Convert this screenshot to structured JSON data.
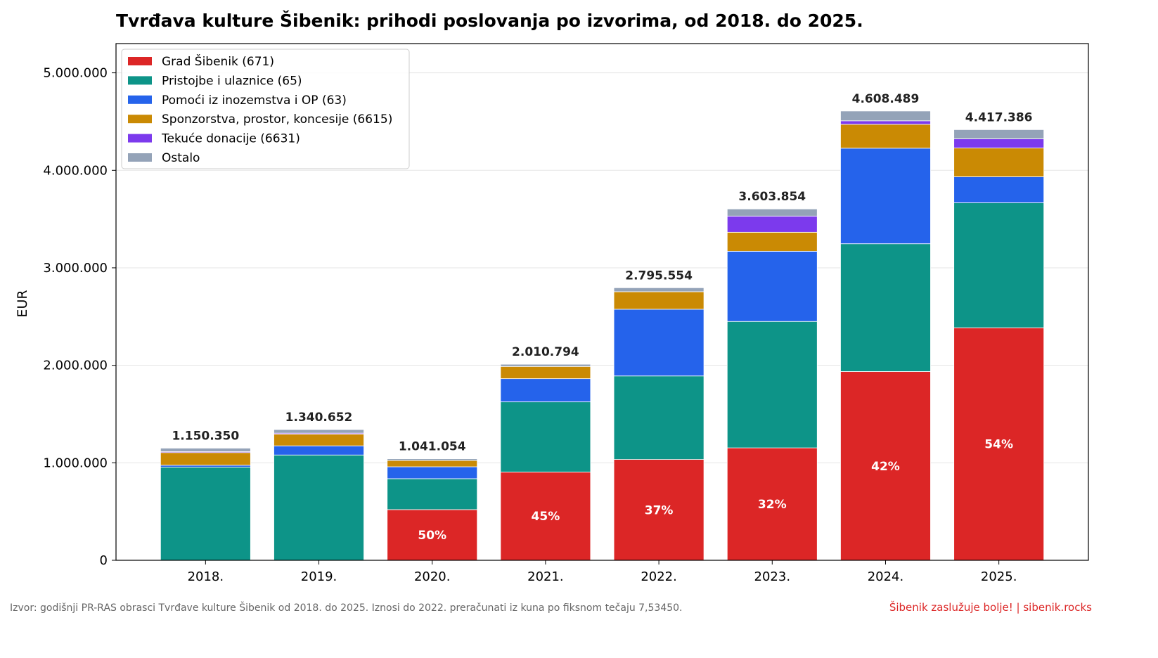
{
  "chart_data": {
    "type": "bar",
    "stacked": true,
    "title": "Tvrđava kulture Šibenik: prihodi poslovanja po izvorima, od 2018. do 2025.",
    "xlabel": "",
    "ylabel": "EUR",
    "ylim": [
      0,
      5300000
    ],
    "yticks": [
      0,
      1000000,
      2000000,
      3000000,
      4000000,
      5000000
    ],
    "ytick_labels": [
      "0",
      "1.000.000",
      "2.000.000",
      "3.000.000",
      "4.000.000",
      "5.000.000"
    ],
    "grid": "horizontal",
    "legend_position": "top-left",
    "categories": [
      "2018.",
      "2019.",
      "2020.",
      "2021.",
      "2022.",
      "2023.",
      "2024.",
      "2025."
    ],
    "series": [
      {
        "name": "Grad Šibenik (671)",
        "color": "#dc2626",
        "values": [
          0,
          0,
          520000,
          905000,
          1034000,
          1153000,
          1936000,
          2385000
        ]
      },
      {
        "name": "Pristojbe i ulaznice (65)",
        "color": "#0d9488",
        "values": [
          955000,
          1080000,
          317000,
          720000,
          857000,
          1297000,
          1311000,
          1282000
        ]
      },
      {
        "name": "Pomoći iz inozemstva i OP (63)",
        "color": "#2563eb",
        "values": [
          20000,
          94000,
          122000,
          238000,
          684000,
          720000,
          980000,
          267000
        ]
      },
      {
        "name": "Sponzorstva, prostor, koncesije (6615)",
        "color": "#ca8a04",
        "values": [
          130000,
          120000,
          65000,
          125000,
          180000,
          195000,
          245000,
          295000
        ]
      },
      {
        "name": "Tekuće donacije (6631)",
        "color": "#7c3aed",
        "values": [
          10000,
          10000,
          0,
          0,
          0,
          166000,
          36000,
          94000
        ]
      },
      {
        "name": "Ostalo",
        "color": "#94a3b8",
        "values": [
          35350,
          36652,
          17054,
          22794,
          40554,
          72854,
          100489,
          94386
        ]
      }
    ],
    "total_labels": [
      "1.150.350",
      "1.340.652",
      "1.041.054",
      "2.010.794",
      "2.795.554",
      "3.603.854",
      "4.608.489",
      "4.417.386"
    ],
    "share_labels": [
      "",
      "",
      "50%",
      "45%",
      "37%",
      "32%",
      "42%",
      "54%"
    ]
  },
  "footer": {
    "source": "Izvor: godišnji PR-RAS obrasci Tvrđave kulture Šibenik od 2018. do 2025. Iznosi do 2022. preračunati iz kuna po fiksnom tečaju 7,53450.",
    "brand": "Šibenik zaslužuje bolje!  |  sibenik.rocks",
    "brand_color": "#dc2626"
  }
}
